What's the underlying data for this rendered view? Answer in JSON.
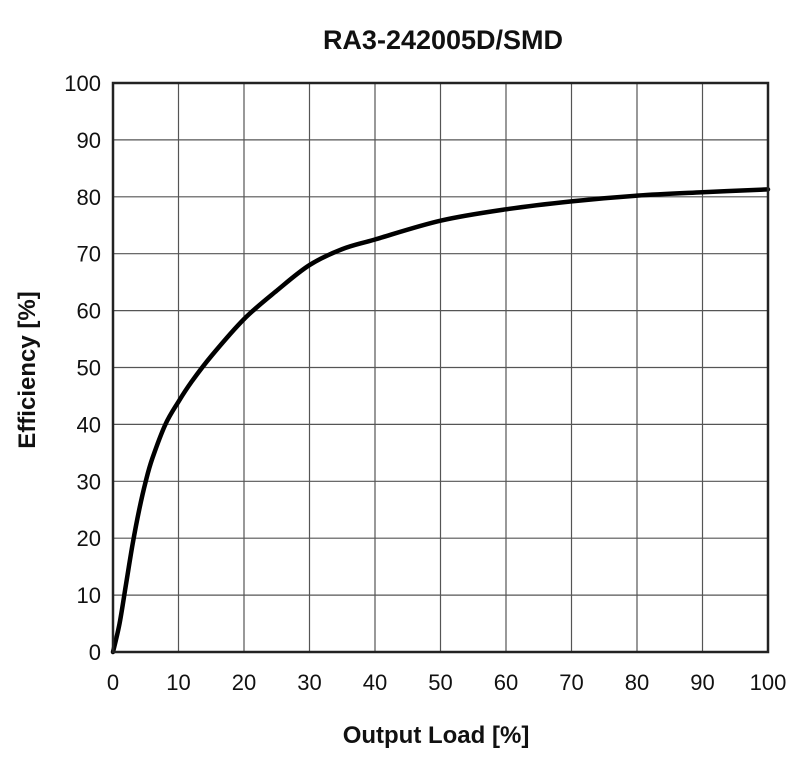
{
  "chart_data": {
    "type": "line",
    "title": "RA3-242005D/SMD",
    "xlabel": "Output Load [%]",
    "ylabel": "Efficiency [%]",
    "xlim": [
      0,
      100
    ],
    "ylim": [
      0,
      100
    ],
    "x_ticks": [
      "0",
      "10",
      "20",
      "30",
      "40",
      "50",
      "60",
      "70",
      "80",
      "90",
      "100"
    ],
    "y_ticks": [
      "0",
      "10",
      "20",
      "30",
      "40",
      "50",
      "60",
      "70",
      "80",
      "90",
      "100"
    ],
    "grid": true,
    "legend": "none",
    "line_color": "#000000",
    "series": [
      {
        "x": [
          0,
          1,
          2,
          3,
          4,
          5,
          6,
          8,
          10,
          12,
          15,
          20,
          25,
          30,
          35,
          40,
          50,
          60,
          70,
          80,
          90,
          100
        ],
        "values": [
          0,
          5,
          12,
          19,
          25,
          30,
          34,
          40,
          44,
          47.5,
          52,
          58.5,
          63.5,
          68,
          70.8,
          72.5,
          75.8,
          77.8,
          79.2,
          80.2,
          80.8,
          81.3
        ]
      }
    ]
  }
}
